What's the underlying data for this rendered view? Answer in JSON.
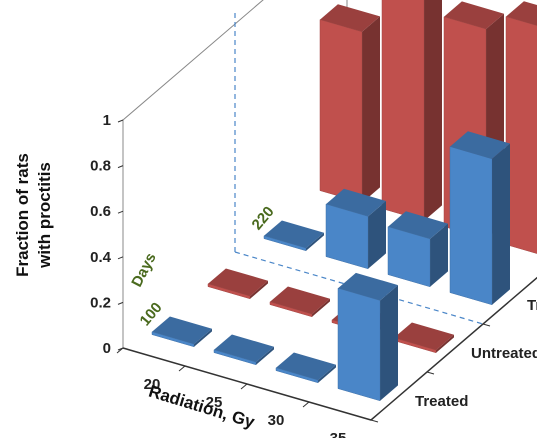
{
  "chart_data": {
    "type": "bar3d",
    "ylabel_line1": "Fraction of rats",
    "ylabel_line2": "with proctitis",
    "xlabel": "Radiation, Gy",
    "xcategories": [
      "20",
      "25",
      "30",
      "35"
    ],
    "ycategories": [
      "Treated",
      "Untreated",
      "Treated",
      "Untreated"
    ],
    "zticks": [
      "0",
      "0.2",
      "0.4",
      "0.6",
      "0.8",
      "1"
    ],
    "zlim": [
      0,
      1
    ],
    "days_label": "Days",
    "day_groups": [
      "100",
      "220"
    ],
    "series": [
      {
        "group": "100",
        "condition": "Treated",
        "color": "#4a86c8",
        "values": [
          0,
          0,
          0,
          0.44
        ]
      },
      {
        "group": "100",
        "condition": "Untreated",
        "color": "#c0504d",
        "values": [
          0,
          0,
          0,
          0
        ]
      },
      {
        "group": "220",
        "condition": "Treated",
        "color": "#4a86c8",
        "values": [
          0,
          0.23,
          0.21,
          0.64
        ]
      },
      {
        "group": "220",
        "condition": "Untreated",
        "color": "#c0504d",
        "values": [
          0.75,
          1.0,
          0.92,
          1.0
        ]
      }
    ],
    "colors": {
      "treated": "#4a86c8",
      "untreated": "#c0504d",
      "grid": "#4a86c8",
      "wall": "#888888"
    }
  }
}
